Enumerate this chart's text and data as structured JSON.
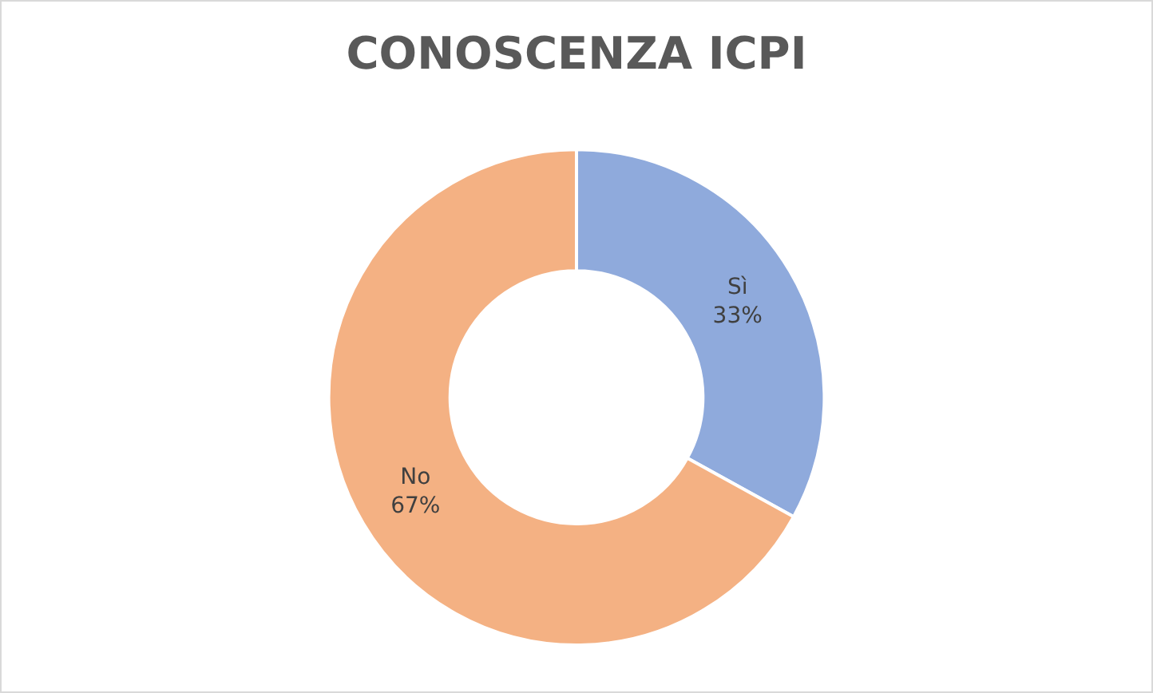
{
  "chart_data": {
    "type": "donut",
    "title": "CONOSCENZA ICPI",
    "categories": [
      "Sì",
      "No"
    ],
    "values": [
      33,
      67
    ],
    "value_labels": [
      "33%",
      "67%"
    ],
    "colors": [
      "#8faadc",
      "#f4b183"
    ],
    "legend": false
  }
}
